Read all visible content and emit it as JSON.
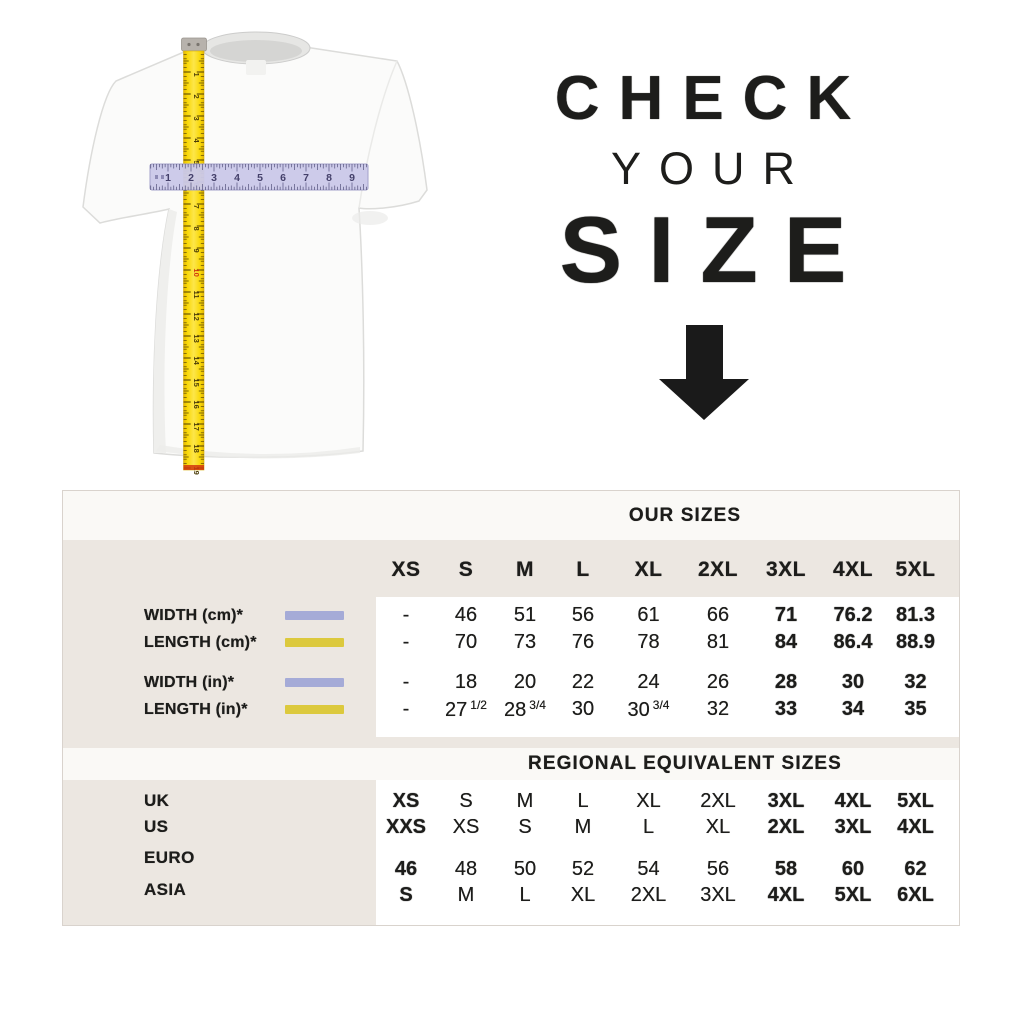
{
  "hero": {
    "line1": "CHECK",
    "line2": "YOUR",
    "line3": "SIZE"
  },
  "illustration": {
    "vertical_tape_numbers": [
      "1",
      "2",
      "3",
      "4",
      "5",
      "6",
      "7",
      "8",
      "9",
      "10",
      "11",
      "12",
      "13",
      "14",
      "15",
      "16",
      "17",
      "18",
      "19"
    ],
    "vertical_tape_highlighted_number": "10",
    "horizontal_ruler_numbers": [
      "1",
      "2",
      "3",
      "4",
      "5",
      "6",
      "7",
      "8",
      "9"
    ]
  },
  "colors": {
    "beige_panel": "#ece7e1",
    "header_band": "#faf9f6",
    "table_border": "#d9d3cd",
    "text": "#1d1d1b",
    "width_swatch": "#a5abd7",
    "length_swatch": "#dcc93d",
    "tape_yellow": "#f9d806",
    "ruler_lavender": "#cbc9e9",
    "tape_red_number": "#d23a0e",
    "arrow_black": "#1a1a1a"
  },
  "table": {
    "section1_title": "OUR SIZES",
    "section2_title": "REGIONAL EQUIVALENT SIZES",
    "columns": [
      "XS",
      "S",
      "M",
      "L",
      "XL",
      "2XL",
      "3XL",
      "4XL",
      "5XL"
    ],
    "measurement_rows": [
      {
        "label": "WIDTH (cm)*",
        "swatch": "width",
        "values": [
          "-",
          "46",
          "51",
          "56",
          "61",
          "66",
          "71",
          "76.2",
          "81.3"
        ],
        "bold_from": 6
      },
      {
        "label": "LENGTH (cm)*",
        "swatch": "length",
        "values": [
          "-",
          "70",
          "73",
          "76",
          "78",
          "81",
          "84",
          "86.4",
          "88.9"
        ],
        "bold_from": 6
      },
      {
        "label": "WIDTH (in)*",
        "swatch": "width",
        "values": [
          "-",
          "18",
          "20",
          "22",
          "24",
          "26",
          "28",
          "30",
          "32"
        ],
        "bold_from": 6
      },
      {
        "label": "LENGTH (in)*",
        "swatch": "length",
        "values": [
          "-",
          "27 1/2",
          "28 3/4",
          "30",
          "30 3/4",
          "32",
          "33",
          "34",
          "35"
        ],
        "bold_from": 6
      }
    ],
    "regional_rows": [
      {
        "label": "UK",
        "values": [
          "XS",
          "S",
          "M",
          "L",
          "XL",
          "2XL",
          "3XL",
          "4XL",
          "5XL"
        ],
        "bold": [
          0,
          6,
          7,
          8
        ]
      },
      {
        "label": "US",
        "values": [
          "XXS",
          "XS",
          "S",
          "M",
          "L",
          "XL",
          "2XL",
          "3XL",
          "4XL"
        ],
        "bold": [
          0,
          6,
          7,
          8
        ]
      },
      {
        "label": "EURO",
        "values": [
          "46",
          "48",
          "50",
          "52",
          "54",
          "56",
          "58",
          "60",
          "62"
        ],
        "bold": [
          0,
          6,
          7,
          8
        ]
      },
      {
        "label": "ASIA",
        "values": [
          "S",
          "M",
          "L",
          "XL",
          "2XL",
          "3XL",
          "4XL",
          "5XL",
          "6XL"
        ],
        "bold": [
          0,
          6,
          7,
          8
        ]
      }
    ]
  }
}
